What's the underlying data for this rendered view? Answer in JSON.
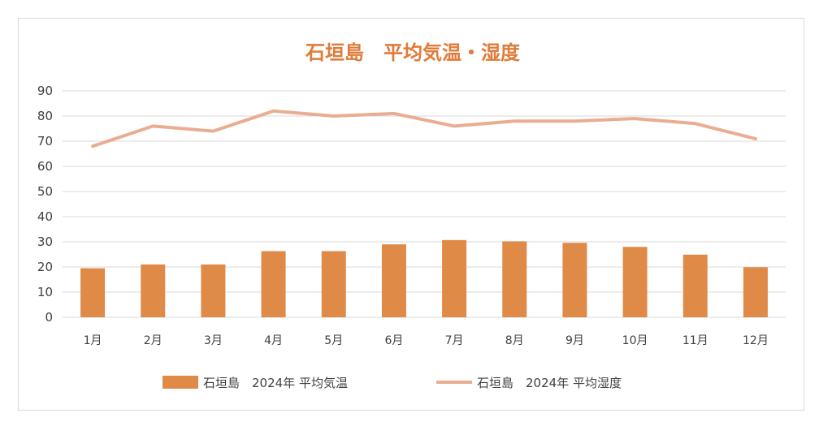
{
  "chart_data": {
    "type": "bar",
    "title": "石垣島　平均気温・湿度",
    "categories": [
      "1月",
      "2月",
      "3月",
      "4月",
      "5月",
      "6月",
      "7月",
      "8月",
      "9月",
      "10月",
      "11月",
      "12月"
    ],
    "ylim": [
      0,
      90
    ],
    "yticks": [
      0,
      10,
      20,
      30,
      40,
      50,
      60,
      70,
      80,
      90
    ],
    "grid": true,
    "legend_position": "bottom",
    "series": [
      {
        "name": "石垣島　2024年 平均気温",
        "type": "bar",
        "color": "#e08a48",
        "values": [
          19.5,
          21,
          21,
          26.3,
          26.3,
          29,
          30.7,
          30.2,
          29.6,
          28,
          24.9,
          19.9
        ]
      },
      {
        "name": "石垣島　2024年 平均湿度",
        "type": "line",
        "color": "#e9ad92",
        "values": [
          68,
          76,
          74,
          82,
          80,
          81,
          76,
          78,
          78,
          79,
          77,
          71
        ]
      }
    ]
  }
}
